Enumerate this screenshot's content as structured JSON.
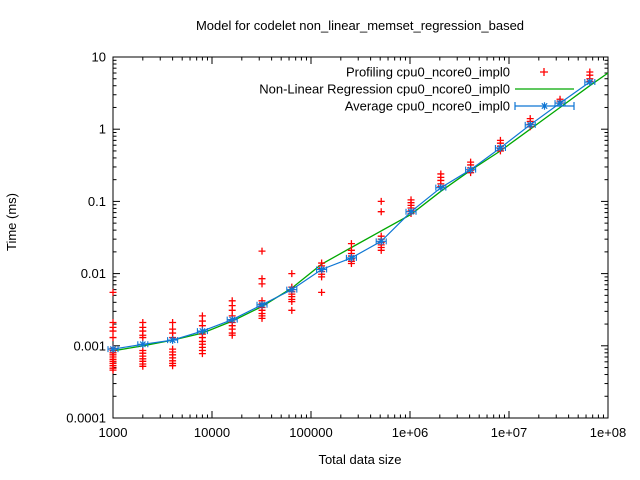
{
  "chart_data": {
    "type": "line",
    "title": "Model for codelet non_linear_memset_regression_based",
    "xlabel": "Total data size",
    "ylabel": "Time (ms)",
    "x_scale": "log",
    "y_scale": "log",
    "xlim": [
      1000,
      100000000
    ],
    "ylim": [
      0.0001,
      10
    ],
    "grid": false,
    "legend_position": "top-right-inside",
    "background": "#ffffff",
    "axis_color": "#000000",
    "x_ticks": [
      {
        "value": 1000,
        "label": "1000"
      },
      {
        "value": 10000,
        "label": "10000"
      },
      {
        "value": 100000,
        "label": "100000"
      },
      {
        "value": 1000000,
        "label": "1e+06"
      },
      {
        "value": 10000000,
        "label": "1e+07"
      },
      {
        "value": 100000000,
        "label": "1e+08"
      }
    ],
    "y_ticks": [
      {
        "value": 10,
        "label": "10"
      },
      {
        "value": 1,
        "label": "1"
      },
      {
        "value": 0.1,
        "label": "0.1"
      },
      {
        "value": 0.01,
        "label": "0.01"
      },
      {
        "value": 0.001,
        "label": "0.001"
      },
      {
        "value": 0.0001,
        "label": "0.0001"
      }
    ],
    "series": [
      {
        "name": "Profiling cpu0_ncore0_impl0",
        "style": "scatter",
        "marker": "plus",
        "color": "#ff0000",
        "points": [
          [
            1000,
            0.0055
          ],
          [
            1000,
            0.0021
          ],
          [
            1000,
            0.0018
          ],
          [
            1000,
            0.0016
          ],
          [
            1000,
            0.0013
          ],
          [
            1000,
            0.00092
          ],
          [
            1000,
            0.00086
          ],
          [
            1000,
            0.0008
          ],
          [
            1000,
            0.00075
          ],
          [
            1000,
            0.0007
          ],
          [
            1000,
            0.00065
          ],
          [
            1000,
            0.00061
          ],
          [
            1000,
            0.00057
          ],
          [
            1000,
            0.00053
          ],
          [
            1000,
            0.00049
          ],
          [
            1000,
            0.00046
          ],
          [
            2000,
            0.0021
          ],
          [
            2000,
            0.0018
          ],
          [
            2000,
            0.0016
          ],
          [
            2000,
            0.0014
          ],
          [
            2000,
            0.0013
          ],
          [
            2000,
            0.00086
          ],
          [
            2000,
            0.00079
          ],
          [
            2000,
            0.00072
          ],
          [
            2000,
            0.00066
          ],
          [
            2000,
            0.00061
          ],
          [
            2000,
            0.00056
          ],
          [
            2000,
            0.00052
          ],
          [
            4000,
            0.0021
          ],
          [
            4000,
            0.0017
          ],
          [
            4000,
            0.0015
          ],
          [
            4000,
            0.0013
          ],
          [
            4000,
            0.0009
          ],
          [
            4000,
            0.00082
          ],
          [
            4000,
            0.00075
          ],
          [
            4000,
            0.00068
          ],
          [
            4000,
            0.00062
          ],
          [
            4000,
            0.00057
          ],
          [
            4000,
            0.00053
          ],
          [
            8000,
            0.0026
          ],
          [
            8000,
            0.0022
          ],
          [
            8000,
            0.0019
          ],
          [
            8000,
            0.00145
          ],
          [
            8000,
            0.0013
          ],
          [
            8000,
            0.00115
          ],
          [
            8000,
            0.00105
          ],
          [
            8000,
            0.00095
          ],
          [
            8000,
            0.00086
          ],
          [
            8000,
            0.00078
          ],
          [
            16000,
            0.0042
          ],
          [
            16000,
            0.0036
          ],
          [
            16000,
            0.0031
          ],
          [
            16000,
            0.0026
          ],
          [
            16000,
            0.0023
          ],
          [
            16000,
            0.0021
          ],
          [
            16000,
            0.0019
          ],
          [
            16000,
            0.0017
          ],
          [
            16000,
            0.0015
          ],
          [
            16000,
            0.0014
          ],
          [
            32000,
            0.0205
          ],
          [
            32000,
            0.0085
          ],
          [
            32000,
            0.0072
          ],
          [
            32000,
            0.0042
          ],
          [
            32000,
            0.0038
          ],
          [
            32000,
            0.0034
          ],
          [
            32000,
            0.0031
          ],
          [
            32000,
            0.0028
          ],
          [
            32000,
            0.0026
          ],
          [
            32000,
            0.0024
          ],
          [
            64000,
            0.01
          ],
          [
            64000,
            0.0065
          ],
          [
            64000,
            0.006
          ],
          [
            64000,
            0.0056
          ],
          [
            64000,
            0.0052
          ],
          [
            64000,
            0.0048
          ],
          [
            64000,
            0.0044
          ],
          [
            64000,
            0.0041
          ],
          [
            64000,
            0.0031
          ],
          [
            128000,
            0.014
          ],
          [
            128000,
            0.0128
          ],
          [
            128000,
            0.0117
          ],
          [
            128000,
            0.0107
          ],
          [
            128000,
            0.0098
          ],
          [
            128000,
            0.009
          ],
          [
            128000,
            0.0055
          ],
          [
            256000,
            0.026
          ],
          [
            256000,
            0.021
          ],
          [
            256000,
            0.019
          ],
          [
            256000,
            0.0175
          ],
          [
            256000,
            0.016
          ],
          [
            256000,
            0.0148
          ],
          [
            256000,
            0.0138
          ],
          [
            512000,
            0.1
          ],
          [
            512000,
            0.072
          ],
          [
            512000,
            0.033
          ],
          [
            512000,
            0.03
          ],
          [
            512000,
            0.027
          ],
          [
            512000,
            0.025
          ],
          [
            512000,
            0.023
          ],
          [
            512000,
            0.021
          ],
          [
            1024000,
            0.105
          ],
          [
            1024000,
            0.096
          ],
          [
            1024000,
            0.088
          ],
          [
            1024000,
            0.081
          ],
          [
            1024000,
            0.074
          ],
          [
            1024000,
            0.068
          ],
          [
            2048000,
            0.24
          ],
          [
            2048000,
            0.215
          ],
          [
            2048000,
            0.195
          ],
          [
            2048000,
            0.175
          ],
          [
            2048000,
            0.16
          ],
          [
            4096000,
            0.35
          ],
          [
            4096000,
            0.32
          ],
          [
            4096000,
            0.29
          ],
          [
            4096000,
            0.27
          ],
          [
            4096000,
            0.25
          ],
          [
            8192000,
            0.7
          ],
          [
            8192000,
            0.64
          ],
          [
            8192000,
            0.58
          ],
          [
            8192000,
            0.54
          ],
          [
            8192000,
            0.5
          ],
          [
            16384000,
            1.4
          ],
          [
            16384000,
            1.28
          ],
          [
            16384000,
            1.17
          ],
          [
            16384000,
            1.08
          ],
          [
            32768000,
            2.6
          ],
          [
            32768000,
            2.45
          ],
          [
            32768000,
            2.3
          ],
          [
            65536000,
            6.2
          ],
          [
            65536000,
            5.6
          ],
          [
            65536000,
            5.0
          ],
          [
            65536000,
            4.6
          ]
        ]
      },
      {
        "name": "Non-Linear Regression cpu0_ncore0_impl0",
        "style": "line",
        "marker": "none",
        "color": "#00a800",
        "x": [
          1000,
          2000,
          4000,
          8000,
          16000,
          32000,
          64000,
          128000,
          256000,
          512000,
          1024000,
          2048000,
          4096000,
          8192000,
          16384000,
          32768000,
          65536000,
          100000000
        ],
        "y": [
          0.00085,
          0.001,
          0.0012,
          0.0015,
          0.0022,
          0.0035,
          0.0063,
          0.0135,
          0.023,
          0.039,
          0.066,
          0.138,
          0.27,
          0.5,
          1.0,
          2.0,
          4.0,
          6.0
        ]
      },
      {
        "name": "Average cpu0_ncore0_impl0",
        "style": "line+markers",
        "marker": "asterisk-errorbar",
        "color": "#0e76d4",
        "x": [
          1000,
          2000,
          4000,
          8000,
          16000,
          32000,
          64000,
          128000,
          256000,
          512000,
          1024000,
          2048000,
          4096000,
          8192000,
          16384000,
          32768000,
          65536000
        ],
        "y": [
          0.0009,
          0.00105,
          0.0012,
          0.0016,
          0.0023,
          0.0037,
          0.006,
          0.0114,
          0.0165,
          0.028,
          0.072,
          0.155,
          0.275,
          0.55,
          1.15,
          2.3,
          4.5
        ]
      }
    ]
  }
}
